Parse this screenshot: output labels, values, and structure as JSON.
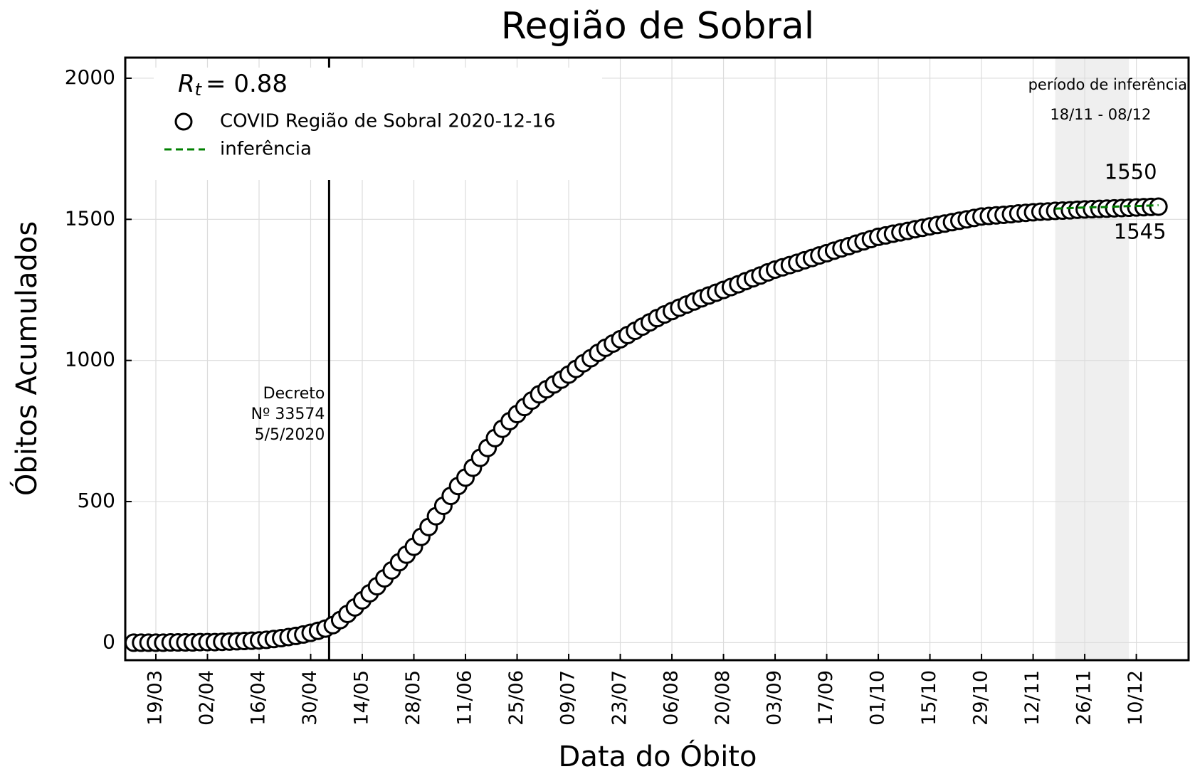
{
  "chart_data": {
    "type": "scatter",
    "title": "Região de Sobral",
    "x_label": "Data do Óbito",
    "y_label": "Óbitos Acumulados",
    "rt": {
      "symbol": "R",
      "subscript": "t",
      "text": "= 0.88"
    },
    "categories": [
      "13/03",
      "15/03",
      "17/03",
      "19/03",
      "21/03",
      "23/03",
      "25/03",
      "27/03",
      "29/03",
      "31/03",
      "02/04",
      "04/04",
      "06/04",
      "08/04",
      "10/04",
      "12/04",
      "14/04",
      "16/04",
      "18/04",
      "20/04",
      "22/04",
      "24/04",
      "26/04",
      "28/04",
      "30/04",
      "02/05",
      "04/05",
      "06/05",
      "08/05",
      "10/05",
      "12/05",
      "14/05",
      "16/05",
      "18/05",
      "20/05",
      "22/05",
      "24/05",
      "26/05",
      "28/05",
      "30/05",
      "01/06",
      "03/06",
      "05/06",
      "07/06",
      "09/06",
      "11/06",
      "13/06",
      "15/06",
      "17/06",
      "19/06",
      "21/06",
      "23/06",
      "25/06",
      "27/06",
      "29/06",
      "01/07",
      "03/07",
      "05/07",
      "07/07",
      "09/07",
      "11/07",
      "13/07",
      "15/07",
      "17/07",
      "19/07",
      "21/07",
      "23/07",
      "25/07",
      "27/07",
      "29/07",
      "31/07",
      "02/08",
      "04/08",
      "06/08",
      "08/08",
      "10/08",
      "12/08",
      "14/08",
      "16/08",
      "18/08",
      "20/08",
      "22/08",
      "24/08",
      "26/08",
      "28/08",
      "30/08",
      "01/09",
      "03/09",
      "05/09",
      "07/09",
      "09/09",
      "11/09",
      "13/09",
      "15/09",
      "17/09",
      "19/09",
      "21/09",
      "23/09",
      "25/09",
      "27/09",
      "29/09",
      "01/10",
      "03/10",
      "05/10",
      "07/10",
      "09/10",
      "11/10",
      "13/10",
      "15/10",
      "17/10",
      "19/10",
      "21/10",
      "23/10",
      "25/10",
      "27/10",
      "29/10",
      "31/10",
      "02/11",
      "04/11",
      "06/11",
      "08/11",
      "10/11",
      "12/11",
      "14/11",
      "16/11",
      "18/11",
      "20/11",
      "22/11",
      "24/11",
      "26/11",
      "28/11",
      "30/11",
      "02/12",
      "04/12",
      "06/12",
      "08/12",
      "10/12",
      "12/12",
      "14/12",
      "16/12"
    ],
    "series": [
      {
        "name": "COVID Região de Sobral 2020-12-16",
        "color": "#000000",
        "marker": "open-circle",
        "values": [
          0,
          0,
          0,
          0,
          0,
          1,
          1,
          1,
          1,
          2,
          2,
          2,
          3,
          4,
          5,
          6,
          7,
          8,
          10,
          13,
          16,
          20,
          24,
          29,
          35,
          42,
          50,
          62,
          80,
          102,
          125,
          150,
          175,
          200,
          228,
          256,
          285,
          312,
          340,
          375,
          410,
          448,
          485,
          520,
          555,
          585,
          620,
          655,
          690,
          725,
          758,
          785,
          810,
          835,
          858,
          880,
          898,
          915,
          932,
          950,
          970,
          990,
          1008,
          1027,
          1045,
          1060,
          1075,
          1090,
          1105,
          1120,
          1135,
          1150,
          1163,
          1175,
          1187,
          1198,
          1209,
          1220,
          1230,
          1240,
          1250,
          1260,
          1270,
          1281,
          1291,
          1301,
          1312,
          1322,
          1330,
          1338,
          1346,
          1355,
          1363,
          1372,
          1380,
          1389,
          1397,
          1405,
          1414,
          1422,
          1430,
          1438,
          1443,
          1449,
          1454,
          1459,
          1465,
          1470,
          1475,
          1480,
          1485,
          1490,
          1495,
          1500,
          1505,
          1510,
          1512,
          1514,
          1516,
          1518,
          1521,
          1523,
          1525,
          1527,
          1528,
          1530,
          1531,
          1532,
          1534,
          1535,
          1536,
          1537,
          1538,
          1539,
          1540,
          1541,
          1542,
          1543,
          1544,
          1545
        ]
      },
      {
        "name": "inferência",
        "color": "#008000",
        "line_style": "dashed",
        "values": [
          null,
          null,
          null,
          null,
          null,
          null,
          null,
          null,
          null,
          null,
          null,
          null,
          null,
          null,
          null,
          null,
          null,
          null,
          null,
          null,
          null,
          null,
          null,
          null,
          null,
          null,
          null,
          null,
          null,
          null,
          null,
          null,
          null,
          null,
          null,
          null,
          null,
          null,
          null,
          null,
          null,
          null,
          null,
          null,
          null,
          null,
          null,
          null,
          null,
          null,
          null,
          null,
          null,
          null,
          null,
          null,
          null,
          null,
          null,
          null,
          null,
          null,
          null,
          null,
          null,
          null,
          null,
          null,
          null,
          null,
          null,
          null,
          null,
          null,
          null,
          null,
          null,
          null,
          null,
          null,
          null,
          null,
          null,
          null,
          null,
          null,
          null,
          null,
          null,
          null,
          null,
          null,
          null,
          null,
          null,
          null,
          null,
          null,
          null,
          null,
          null,
          null,
          null,
          null,
          null,
          null,
          null,
          null,
          null,
          null,
          null,
          null,
          null,
          null,
          null,
          null,
          null,
          null,
          null,
          null,
          null,
          null,
          null,
          null,
          null,
          1538,
          1539,
          1540,
          1541,
          1542,
          1543,
          1543,
          1544,
          1545,
          1546,
          1547,
          1547,
          1548,
          1549,
          1550
        ]
      }
    ],
    "xticks": [
      "19/03",
      "02/04",
      "16/04",
      "30/04",
      "14/05",
      "28/05",
      "11/06",
      "25/06",
      "09/07",
      "23/07",
      "06/08",
      "20/08",
      "03/09",
      "17/09",
      "01/10",
      "15/10",
      "29/10",
      "12/11",
      "26/11",
      "10/12"
    ],
    "ylim": [
      -62,
      2073
    ],
    "yticks": [
      0,
      500,
      1000,
      1500,
      2000
    ],
    "grid": true,
    "legend": "upper left",
    "decree": {
      "x": "05/05",
      "lines": [
        "Decreto",
        "Nº 33574",
        "5/5/2020"
      ]
    },
    "inference_period": {
      "start": "18/11",
      "end": "08/12",
      "label": "período de inferência",
      "range_label": "18/11 - 08/12"
    }
  }
}
